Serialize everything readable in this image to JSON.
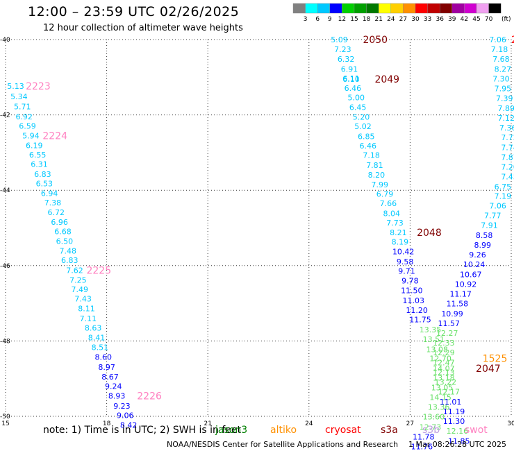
{
  "header": {
    "title": "12:00 – 23:59 UTC 02/26/2025",
    "subtitle": "12 hour collection of altimeter wave heights"
  },
  "color_scale": {
    "unit": "(ft)",
    "bins": [
      {
        "label": "3",
        "color": "#808080"
      },
      {
        "label": "6",
        "color": "#00ffff"
      },
      {
        "label": "9",
        "color": "#00c8ff"
      },
      {
        "label": "12",
        "color": "#0000ff"
      },
      {
        "label": "15",
        "color": "#00d000"
      },
      {
        "label": "18",
        "color": "#00a000"
      },
      {
        "label": "21",
        "color": "#007800"
      },
      {
        "label": "24",
        "color": "#ffff00"
      },
      {
        "label": "27",
        "color": "#ffd000"
      },
      {
        "label": "30",
        "color": "#ff9000"
      },
      {
        "label": "33",
        "color": "#ff0000"
      },
      {
        "label": "36",
        "color": "#c00000"
      },
      {
        "label": "39",
        "color": "#800000"
      },
      {
        "label": "42",
        "color": "#a000a0"
      },
      {
        "label": "45",
        "color": "#d000d0"
      },
      {
        "label": "70",
        "color": "#f0a0f0"
      },
      {
        "label": "",
        "color": "#000000"
      }
    ]
  },
  "note": "note: 1) Time is in UTC; 2) SWH is in feet",
  "satellites": [
    {
      "name": "jason3",
      "color": "#008000"
    },
    {
      "name": "altiko",
      "color": "#ff9000"
    },
    {
      "name": "cryosat",
      "color": "#ff0000"
    },
    {
      "name": "s3a",
      "color": "#800000"
    },
    {
      "name": "s3b",
      "color": "#c0a0e0"
    },
    {
      "name": "swot",
      "color": "#ff80c0"
    }
  ],
  "footer": {
    "credit": "NOAA/NESDIS Center for Satellite Applications and Research",
    "timestamp": "1 Mar 08:26:28 UTC 2025"
  },
  "chart_data": {
    "type": "scatter",
    "xlim": [
      15,
      30
    ],
    "ylim": [
      -50,
      -40
    ],
    "x_ticks": [
      "15",
      "18",
      "21",
      "24",
      "27",
      "30"
    ],
    "x_tick_values": [
      15,
      18,
      21,
      24,
      27,
      30
    ],
    "y_ticks": [
      "-40",
      "-42",
      "-44",
      "-46",
      "-48",
      "-50"
    ],
    "y_tick_values": [
      -40,
      -42,
      -44,
      -46,
      -48,
      -50
    ],
    "grid": true,
    "series": [
      {
        "color": "#00c8ff",
        "points": [
          [
            15.3,
            -41.23,
            "5.13"
          ],
          [
            15.4,
            -41.51,
            "5.34"
          ],
          [
            15.5,
            -41.78,
            "5.71"
          ],
          [
            15.55,
            -42.04,
            "6.92"
          ],
          [
            15.65,
            -42.29,
            "6.59"
          ],
          [
            15.75,
            -42.55,
            "5.94"
          ],
          [
            15.85,
            -42.81,
            "6.19"
          ],
          [
            15.95,
            -43.06,
            "6.55"
          ],
          [
            16.0,
            -43.31,
            "6.31"
          ],
          [
            16.1,
            -43.57,
            "6.83"
          ],
          [
            16.15,
            -43.82,
            "6.53"
          ],
          [
            16.3,
            -44.08,
            "6.94"
          ],
          [
            16.4,
            -44.33,
            "7.38"
          ],
          [
            16.5,
            -44.59,
            "6.72"
          ],
          [
            16.6,
            -44.84,
            "6.96"
          ],
          [
            16.7,
            -45.09,
            "6.68"
          ],
          [
            16.75,
            -45.35,
            "6.50"
          ],
          [
            16.85,
            -45.61,
            "7.48"
          ],
          [
            16.9,
            -45.86,
            "6.83"
          ],
          [
            17.05,
            -46.12,
            "7.62"
          ],
          [
            17.15,
            -46.38,
            "7.25"
          ],
          [
            17.2,
            -46.63,
            "7.49"
          ],
          [
            17.3,
            -46.88,
            "7.43"
          ],
          [
            17.4,
            -47.14,
            "8.11"
          ],
          [
            17.45,
            -47.4,
            "7.11"
          ],
          [
            17.6,
            -47.65,
            "8.63"
          ],
          [
            17.7,
            -47.91,
            "8.41"
          ],
          [
            17.8,
            -48.17,
            "8.51"
          ]
        ]
      },
      {
        "color": "#0000ff",
        "points": [
          [
            17.9,
            -48.43,
            "8.60"
          ],
          [
            18.0,
            -48.69,
            "8.97"
          ],
          [
            18.1,
            -48.95,
            "8.67"
          ],
          [
            18.2,
            -49.2,
            "9.24"
          ],
          [
            18.3,
            -49.46,
            "8.93"
          ],
          [
            18.45,
            -49.72,
            "9.23"
          ],
          [
            18.55,
            -49.97,
            "9.06"
          ],
          [
            18.65,
            -50.23,
            "8.42"
          ]
        ]
      },
      {
        "color": "#00c8ff",
        "points": [
          [
            24.9,
            -40.0,
            "5.09"
          ],
          [
            25.0,
            -40.26,
            "7.23"
          ],
          [
            25.1,
            -40.52,
            "6.32"
          ],
          [
            25.2,
            -40.78,
            "6.91"
          ],
          [
            25.25,
            -41.03,
            "6.11"
          ],
          [
            25.25,
            -41.05,
            "6.10"
          ],
          [
            25.3,
            -41.29,
            "6.46"
          ],
          [
            25.4,
            -41.54,
            "5.00"
          ],
          [
            25.45,
            -41.8,
            "6.45"
          ],
          [
            25.55,
            -42.05,
            "5.20"
          ],
          [
            25.6,
            -42.3,
            "5.02"
          ],
          [
            25.7,
            -42.57,
            "6.85"
          ],
          [
            25.75,
            -42.82,
            "6.46"
          ],
          [
            25.85,
            -43.07,
            "7.18"
          ],
          [
            25.95,
            -43.33,
            "7.81"
          ],
          [
            26.0,
            -43.59,
            "8.20"
          ],
          [
            26.1,
            -43.85,
            "7.99"
          ],
          [
            26.25,
            -44.1,
            "6.79"
          ],
          [
            26.35,
            -44.35,
            "7.66"
          ],
          [
            26.45,
            -44.61,
            "8.04"
          ],
          [
            26.55,
            -44.86,
            "7.73"
          ],
          [
            26.65,
            -45.12,
            "8.21"
          ],
          [
            26.7,
            -45.37,
            "8.19"
          ]
        ]
      },
      {
        "color": "#0000ff",
        "points": [
          [
            26.8,
            -45.63,
            "10.42"
          ],
          [
            26.85,
            -45.89,
            "9.58"
          ],
          [
            26.9,
            -46.14,
            "9.71"
          ],
          [
            27.0,
            -46.4,
            "9.78"
          ],
          [
            27.05,
            -46.66,
            "11.50"
          ],
          [
            27.1,
            -46.92,
            "11.03"
          ],
          [
            27.2,
            -47.18,
            "11.20"
          ],
          [
            27.3,
            -47.43,
            "11.75"
          ]
        ]
      },
      {
        "color": "#66e066",
        "points": [
          [
            27.6,
            -47.7,
            "13.35"
          ],
          [
            27.7,
            -47.96,
            "13.51"
          ],
          [
            27.8,
            -48.22,
            "13.08"
          ],
          [
            27.9,
            -48.46,
            "12.70"
          ],
          [
            28.0,
            -48.73,
            "14.07"
          ],
          [
            28.0,
            -48.98,
            "13.18"
          ],
          [
            27.95,
            -49.24,
            "13.05"
          ],
          [
            27.9,
            -49.49,
            "14.15"
          ],
          [
            27.85,
            -49.75,
            "13.36"
          ],
          [
            27.7,
            -50.01,
            "13.60"
          ],
          [
            27.6,
            -50.29,
            "12.73"
          ]
        ]
      },
      {
        "color": "#0000ff",
        "points": [
          [
            27.4,
            -50.54,
            "11.78"
          ],
          [
            27.35,
            -50.8,
            "11.76"
          ]
        ]
      },
      {
        "color": "#00c8ff",
        "points": [
          [
            29.6,
            -40.0,
            "7.06"
          ],
          [
            29.65,
            -40.26,
            "7.18"
          ],
          [
            29.7,
            -40.52,
            "7.68"
          ],
          [
            29.75,
            -40.78,
            "8.27"
          ],
          [
            29.7,
            -41.04,
            "7.30"
          ],
          [
            29.75,
            -41.3,
            "7.95"
          ],
          [
            29.8,
            -41.56,
            "7.39"
          ],
          [
            29.85,
            -41.82,
            "7.89"
          ],
          [
            29.85,
            -42.08,
            "7.12"
          ],
          [
            29.9,
            -42.34,
            "7.36"
          ],
          [
            29.95,
            -42.6,
            "7.72"
          ],
          [
            29.95,
            -42.86,
            "7.74"
          ],
          [
            29.95,
            -43.12,
            "7.87"
          ],
          [
            29.95,
            -43.38,
            "7.20"
          ],
          [
            29.95,
            -43.64,
            "7.45"
          ],
          [
            29.75,
            -43.9,
            "6.75"
          ],
          [
            29.75,
            -44.15,
            "7.19"
          ],
          [
            29.6,
            -44.41,
            "7.06"
          ],
          [
            29.45,
            -44.67,
            "7.77"
          ],
          [
            29.35,
            -44.93,
            "7.91"
          ]
        ]
      },
      {
        "color": "#0000ff",
        "points": [
          [
            29.2,
            -45.19,
            "8.58"
          ],
          [
            29.15,
            -45.45,
            "8.99"
          ],
          [
            29.0,
            -45.71,
            "9.26"
          ],
          [
            28.9,
            -45.97,
            "10.24"
          ],
          [
            28.8,
            -46.23,
            "10.67"
          ],
          [
            28.65,
            -46.49,
            "10.92"
          ],
          [
            28.5,
            -46.75,
            "11.17"
          ],
          [
            28.4,
            -47.01,
            "11.58"
          ],
          [
            28.25,
            -47.27,
            "10.99"
          ],
          [
            28.15,
            -47.53,
            "11.57"
          ]
        ]
      },
      {
        "color": "#66e066",
        "points": [
          [
            28.1,
            -47.79,
            "12.27"
          ],
          [
            28.0,
            -48.05,
            "12.33"
          ],
          [
            28.0,
            -48.31,
            "12.29"
          ],
          [
            28.0,
            -48.57,
            "12.47"
          ],
          [
            28.0,
            -48.83,
            "12.13"
          ],
          [
            28.05,
            -49.09,
            "13.22"
          ],
          [
            28.15,
            -49.35,
            "12.17"
          ]
        ]
      },
      {
        "color": "#0000ff",
        "points": [
          [
            28.2,
            -49.61,
            "11.01"
          ],
          [
            28.3,
            -49.87,
            "11.19"
          ],
          [
            28.3,
            -50.13,
            "11.30"
          ]
        ]
      },
      {
        "color": "#66e066",
        "points": [
          [
            28.4,
            -50.39,
            "12.16"
          ]
        ]
      },
      {
        "color": "#0000ff",
        "points": [
          [
            28.45,
            -50.65,
            "11.85"
          ]
        ]
      }
    ],
    "annotations": [
      {
        "text": "2223",
        "x": 15.6,
        "y": -41.23,
        "color": "#ff80c0"
      },
      {
        "text": "2224",
        "x": 16.1,
        "y": -42.55,
        "color": "#ff80c0"
      },
      {
        "text": "2225",
        "x": 17.4,
        "y": -46.12,
        "color": "#ff80c0"
      },
      {
        "text": "2226",
        "x": 18.9,
        "y": -49.46,
        "color": "#ff80c0"
      },
      {
        "text": "2050",
        "x": 25.6,
        "y": -40.0,
        "color": "#800000"
      },
      {
        "text": "2049",
        "x": 25.95,
        "y": -41.05,
        "color": "#800000"
      },
      {
        "text": "2048",
        "x": 27.2,
        "y": -45.12,
        "color": "#800000"
      },
      {
        "text": "2047",
        "x": 28.95,
        "y": -48.73,
        "color": "#800000"
      },
      {
        "text": "1525",
        "x": 29.15,
        "y": -48.46,
        "color": "#ff9000"
      },
      {
        "text": "2",
        "x": 30.0,
        "y": -40.0,
        "color": "#ff0000"
      }
    ]
  }
}
